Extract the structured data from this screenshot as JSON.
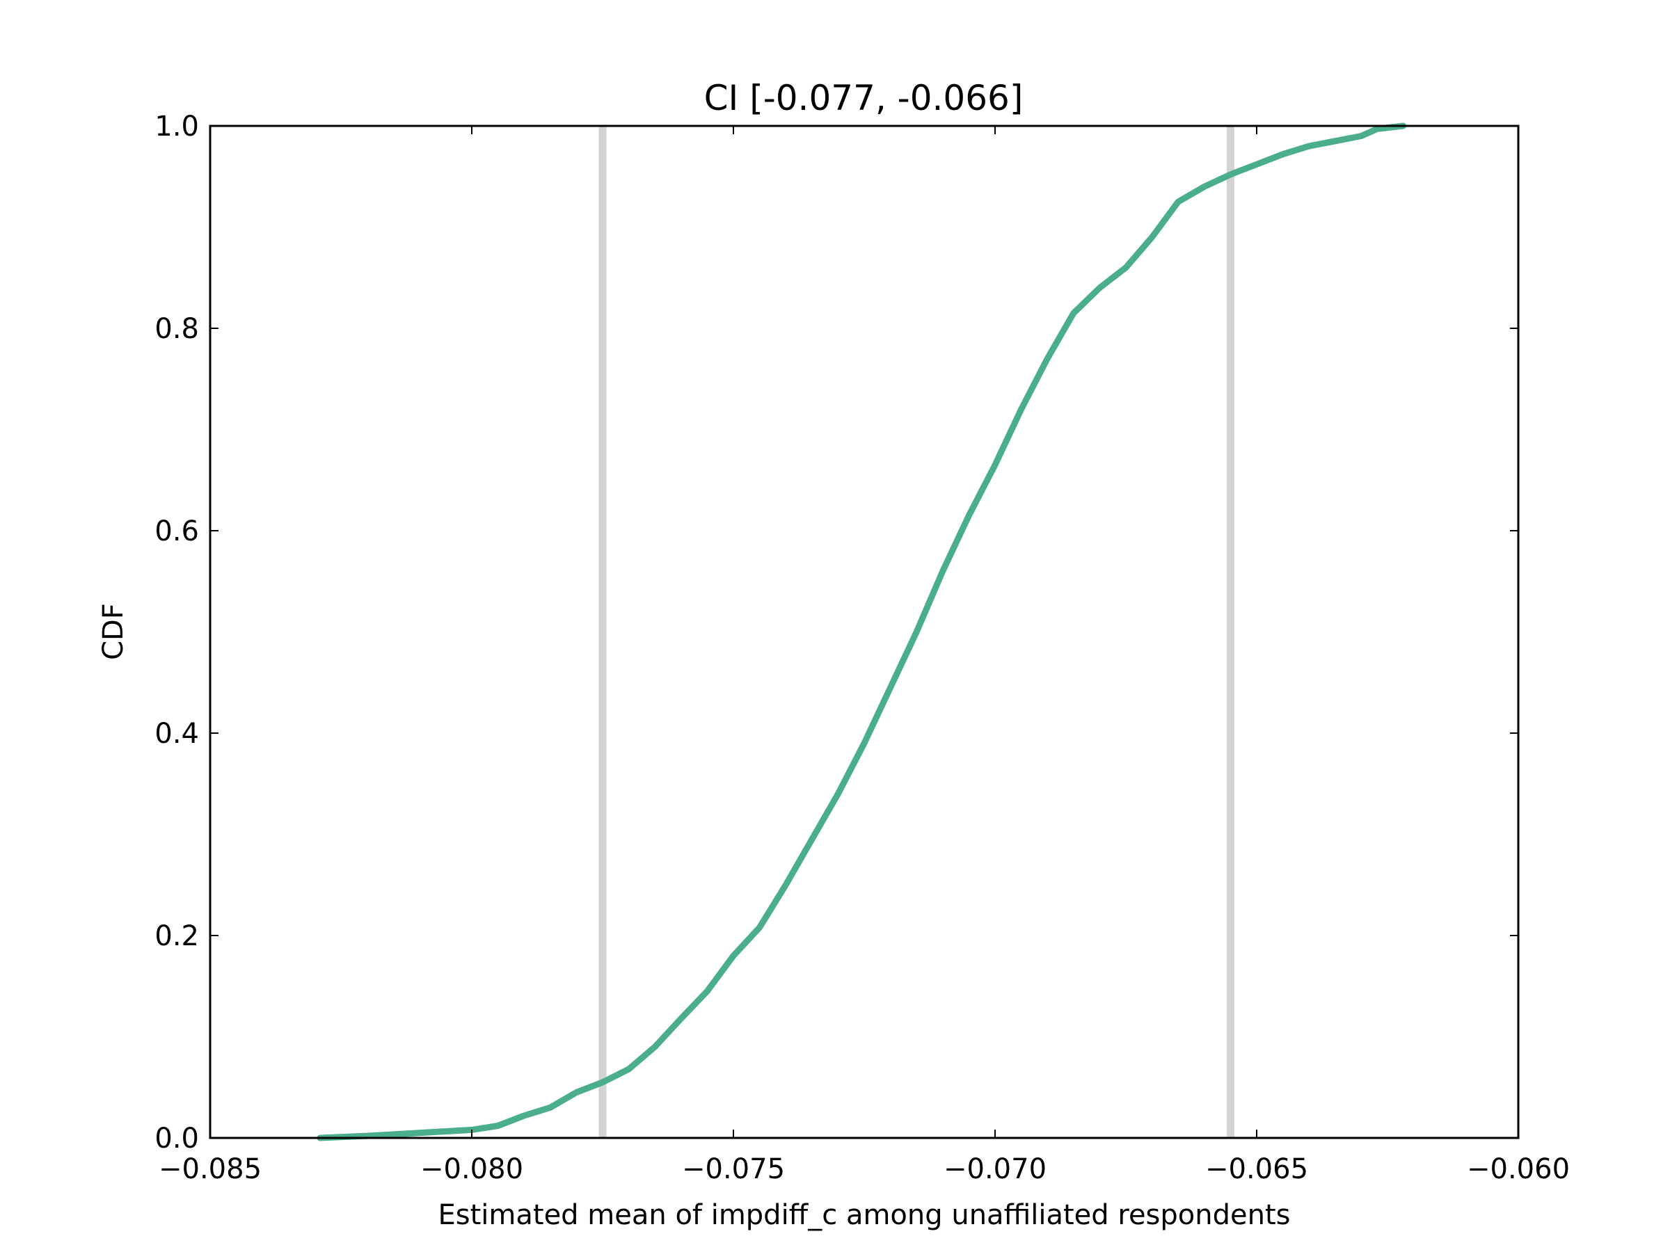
{
  "chart_data": {
    "type": "line",
    "title": "CI [-0.077, -0.066]",
    "xlabel": "Estimated mean of impdiff_c among unaffiliated respondents",
    "ylabel": "CDF",
    "xlim": [
      -0.085,
      -0.06
    ],
    "ylim": [
      0.0,
      1.0
    ],
    "x_ticks": [
      -0.085,
      -0.08,
      -0.075,
      -0.07,
      -0.065,
      -0.06
    ],
    "x_tick_labels": [
      "−0.085",
      "−0.080",
      "−0.075",
      "−0.070",
      "−0.065",
      "−0.060"
    ],
    "y_ticks": [
      0.0,
      0.2,
      0.4,
      0.6,
      0.8,
      1.0
    ],
    "y_tick_labels": [
      "0.0",
      "0.2",
      "0.4",
      "0.6",
      "0.8",
      "1.0"
    ],
    "grid": false,
    "reference_lines": [
      {
        "x": -0.0775,
        "color": "#d3d3d3"
      },
      {
        "x": -0.0655,
        "color": "#d3d3d3"
      }
    ],
    "series": [
      {
        "color": "#4aad8c",
        "x": [
          -0.0829,
          -0.082,
          -0.081,
          -0.08,
          -0.0795,
          -0.079,
          -0.0785,
          -0.078,
          -0.0775,
          -0.077,
          -0.0765,
          -0.076,
          -0.0755,
          -0.075,
          -0.0745,
          -0.074,
          -0.0735,
          -0.073,
          -0.0725,
          -0.072,
          -0.0715,
          -0.071,
          -0.0705,
          -0.07,
          -0.0695,
          -0.069,
          -0.0685,
          -0.068,
          -0.0675,
          -0.067,
          -0.0665,
          -0.066,
          -0.0655,
          -0.065,
          -0.0645,
          -0.064,
          -0.0635,
          -0.063,
          -0.0627,
          -0.0622
        ],
        "y": [
          0.0,
          0.002,
          0.005,
          0.008,
          0.012,
          0.022,
          0.03,
          0.045,
          0.055,
          0.068,
          0.09,
          0.118,
          0.145,
          0.18,
          0.208,
          0.25,
          0.295,
          0.34,
          0.39,
          0.445,
          0.5,
          0.56,
          0.615,
          0.665,
          0.72,
          0.77,
          0.815,
          0.84,
          0.86,
          0.89,
          0.925,
          0.94,
          0.952,
          0.962,
          0.972,
          0.98,
          0.985,
          0.99,
          0.997,
          1.0
        ]
      }
    ]
  }
}
